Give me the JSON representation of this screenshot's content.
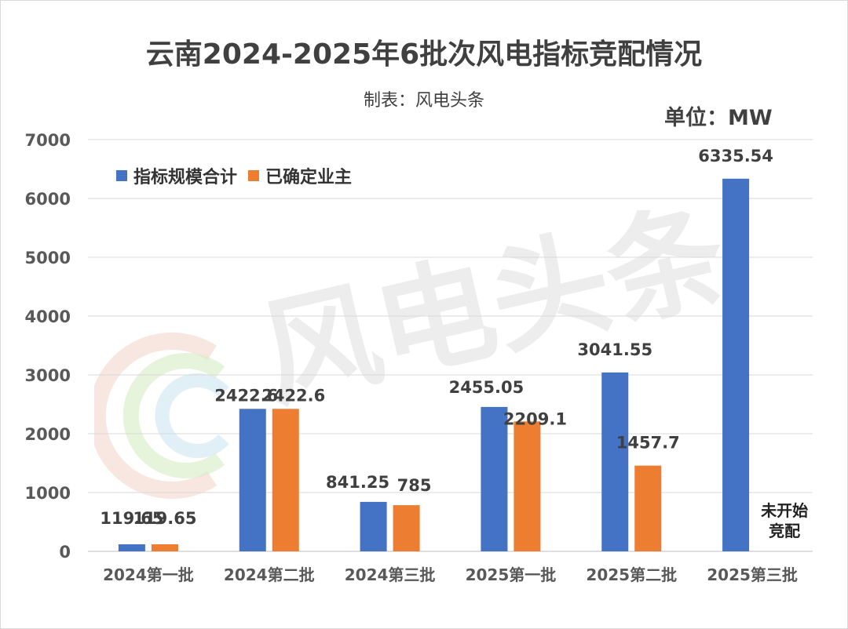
{
  "chart_data": {
    "type": "bar",
    "title": "云南2024-2025年6批次风电指标竞配情况",
    "subtitle": "制表：风电头条",
    "unit": "单位：MW",
    "watermark": "风电头条",
    "categories": [
      "2024第一批",
      "2024第二批",
      "2024第三批",
      "2025第一批",
      "2025第二批",
      "2025第三批"
    ],
    "series": [
      {
        "name": "指标规模合计",
        "color": "#4472C4",
        "values": [
          119.65,
          2422.6,
          841.25,
          2455.05,
          3041.55,
          6335.54
        ],
        "labels": [
          "119.65",
          "2422.6",
          "841.25",
          "2455.05",
          "3041.55",
          "6335.54"
        ]
      },
      {
        "name": "已确定业主",
        "color": "#ED7D31",
        "values": [
          119.65,
          2422.6,
          785,
          2209.1,
          1457.7,
          null
        ],
        "labels": [
          "119.65",
          "2422.6",
          "785",
          "2209.1",
          "1457.7",
          null
        ]
      }
    ],
    "annotation": [
      "未开始",
      "竞配"
    ],
    "y_ticks": [
      "0",
      "1000",
      "2000",
      "3000",
      "4000",
      "5000",
      "6000",
      "7000"
    ],
    "ylim": [
      0,
      7000
    ],
    "grid": true,
    "legend_position": "top-left"
  }
}
